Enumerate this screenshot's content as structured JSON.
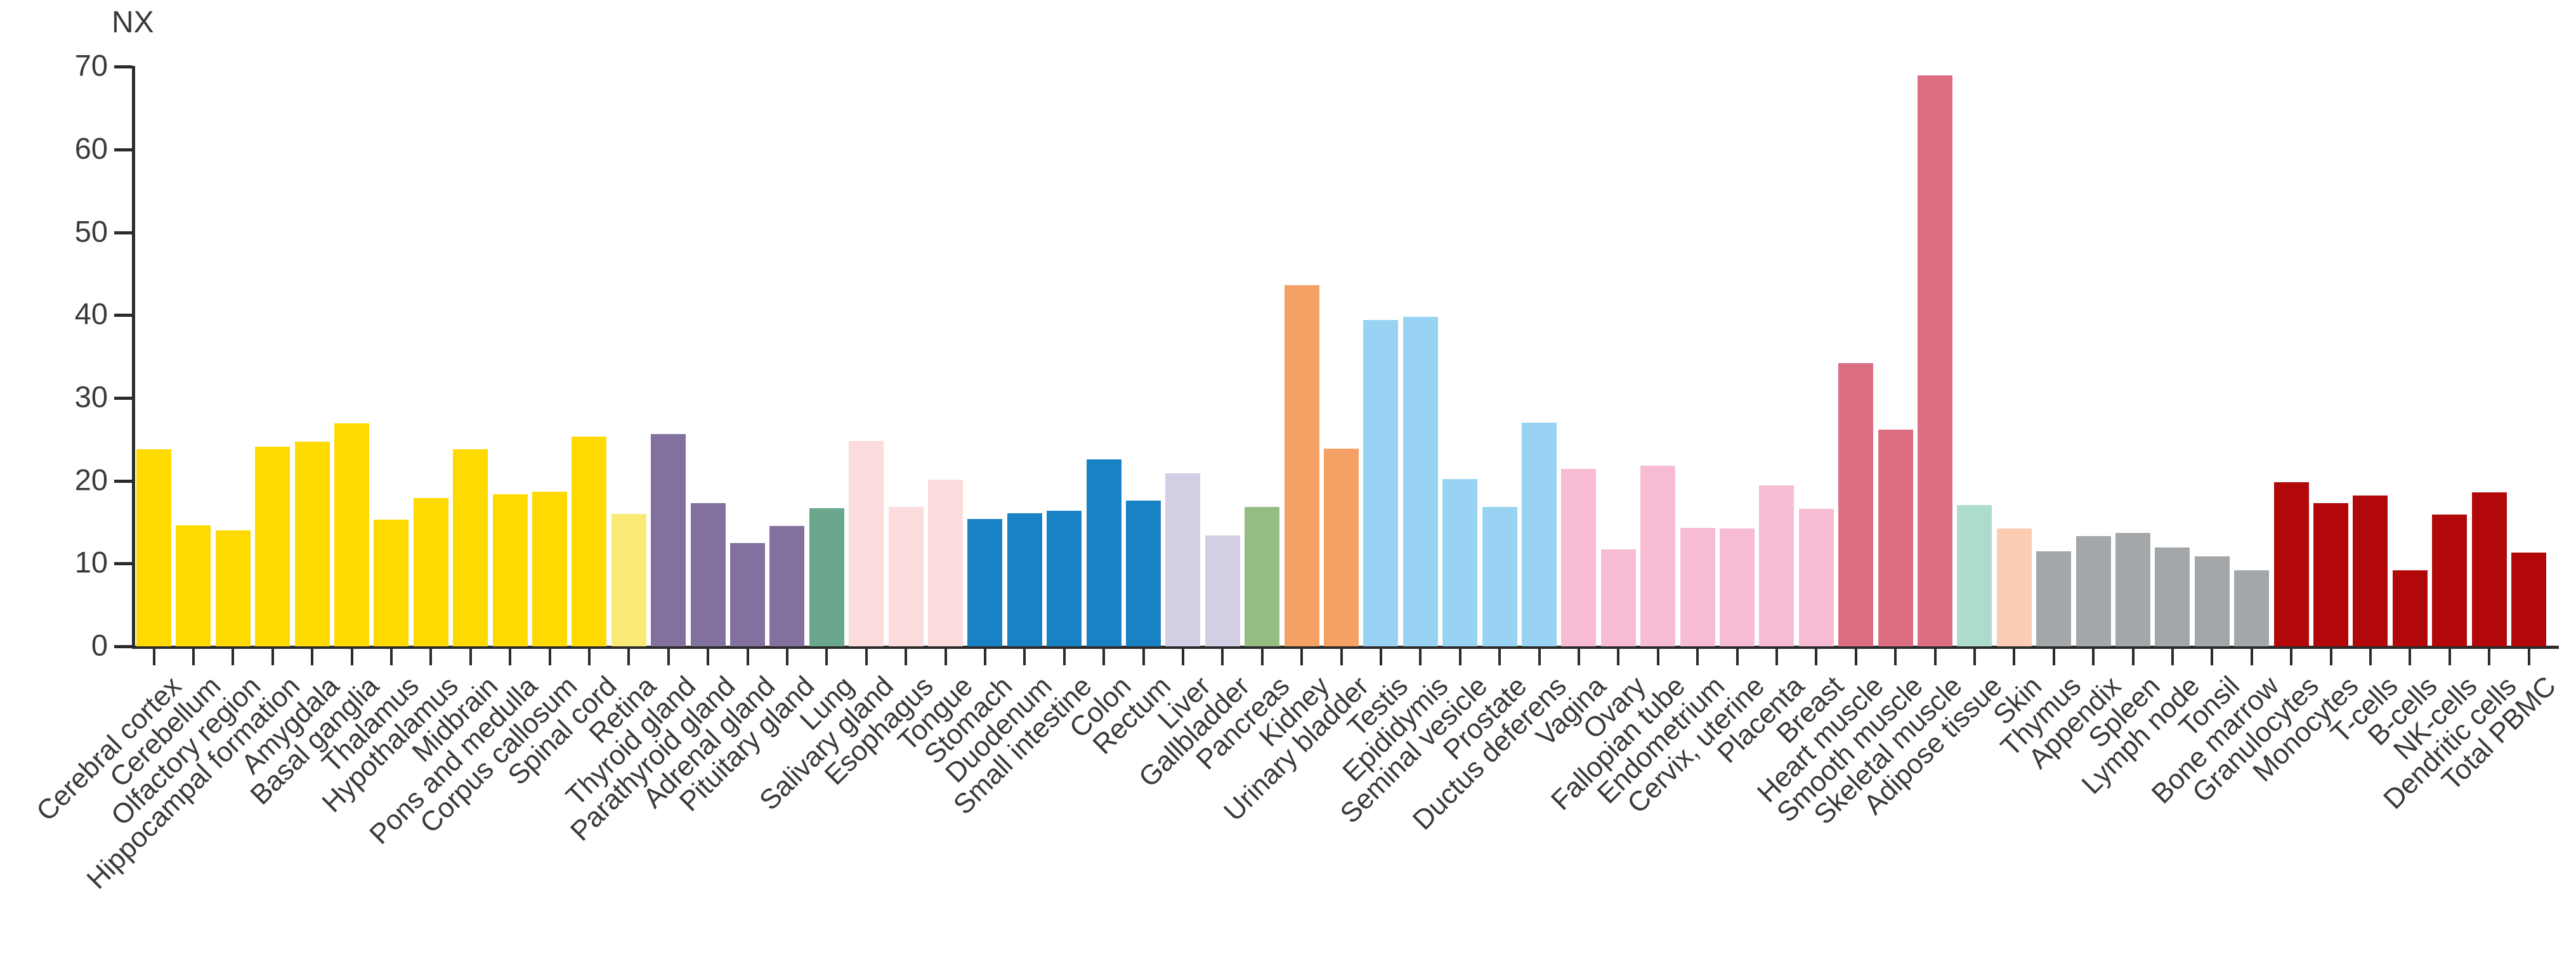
{
  "chart_data": {
    "type": "bar",
    "title": "",
    "ylabel": "NX",
    "xlabel": "",
    "ylim": [
      0,
      70
    ],
    "yticks": [
      0,
      10,
      20,
      30,
      40,
      50,
      60,
      70
    ],
    "grid": false,
    "legend": "none",
    "axis_color": "#2b2b2b",
    "tick_label_color": "#3a3a3a",
    "categories": [
      "Cerebral cortex",
      "Cerebellum",
      "Olfactory region",
      "Hippocampal formation",
      "Amygdala",
      "Basal ganglia",
      "Thalamus",
      "Hypothalamus",
      "Midbrain",
      "Pons and medulla",
      "Corpus callosum",
      "Spinal cord",
      "Retina",
      "Thyroid gland",
      "Parathyroid gland",
      "Adrenal gland",
      "Pituitary gland",
      "Lung",
      "Salivary gland",
      "Esophagus",
      "Tongue",
      "Stomach",
      "Duodenum",
      "Small intestine",
      "Colon",
      "Rectum",
      "Liver",
      "Gallbladder",
      "Pancreas",
      "Kidney",
      "Urinary bladder",
      "Testis",
      "Epididymis",
      "Seminal vesicle",
      "Prostate",
      "Ductus deferens",
      "Vagina",
      "Ovary",
      "Fallopian tube",
      "Endometrium",
      "Cervix, uterine",
      "Placenta",
      "Breast",
      "Heart muscle",
      "Smooth muscle",
      "Skeletal muscle",
      "Adipose tissue",
      "Skin",
      "Thymus",
      "Appendix",
      "Spleen",
      "Lymph node",
      "Tonsil",
      "Bone marrow",
      "Granulocytes",
      "Monocytes",
      "T-cells",
      "B-cells",
      "NK-cells",
      "Dendritic cells",
      "Total PBMC"
    ],
    "values": [
      23.8,
      14.6,
      14.0,
      24.1,
      24.7,
      26.9,
      15.3,
      17.9,
      23.8,
      18.4,
      18.7,
      25.3,
      16.0,
      25.6,
      17.3,
      12.5,
      14.5,
      16.7,
      24.8,
      16.8,
      20.1,
      15.4,
      16.1,
      16.4,
      22.6,
      17.6,
      20.9,
      13.4,
      16.8,
      43.6,
      23.9,
      39.4,
      39.8,
      20.2,
      16.8,
      27.0,
      21.4,
      11.7,
      21.8,
      14.3,
      14.2,
      19.4,
      16.6,
      34.2,
      26.2,
      68.9,
      17.1,
      14.2,
      11.5,
      13.3,
      13.7,
      11.9,
      10.9,
      9.2,
      19.8,
      17.3,
      18.2,
      9.2,
      15.9,
      18.6,
      11.3
    ],
    "colors": [
      "#FFDA00",
      "#FFDA00",
      "#FFDA00",
      "#FFDA00",
      "#FFDA00",
      "#FFDA00",
      "#FFDA00",
      "#FFDA00",
      "#FFDA00",
      "#FFDA00",
      "#FFDA00",
      "#FFDA00",
      "#F9EA75",
      "#82709F",
      "#82709F",
      "#82709F",
      "#82709F",
      "#6AA78D",
      "#FBDBDB",
      "#FBDBDB",
      "#FBDBDB",
      "#1982C4",
      "#1982C4",
      "#1982C4",
      "#1982C4",
      "#1982C4",
      "#D3CEE3",
      "#D3CEE3",
      "#95BD82",
      "#F5A165",
      "#F5A165",
      "#99D3F3",
      "#99D3F3",
      "#99D3F3",
      "#99D3F3",
      "#99D3F3",
      "#F7BCD4",
      "#F7BCD4",
      "#F7BCD4",
      "#F7BCD4",
      "#F7BCD4",
      "#F7BCD4",
      "#F7BCD4",
      "#DC6E82",
      "#DC6E82",
      "#DC6E82",
      "#AEDCCC",
      "#FBCDB2",
      "#A4A7A9",
      "#A4A7A9",
      "#A4A7A9",
      "#A4A7A9",
      "#A4A7A9",
      "#A4A7A9",
      "#B30809",
      "#B30809",
      "#B30809",
      "#B30809",
      "#B30809",
      "#B30809",
      "#B30809"
    ]
  }
}
